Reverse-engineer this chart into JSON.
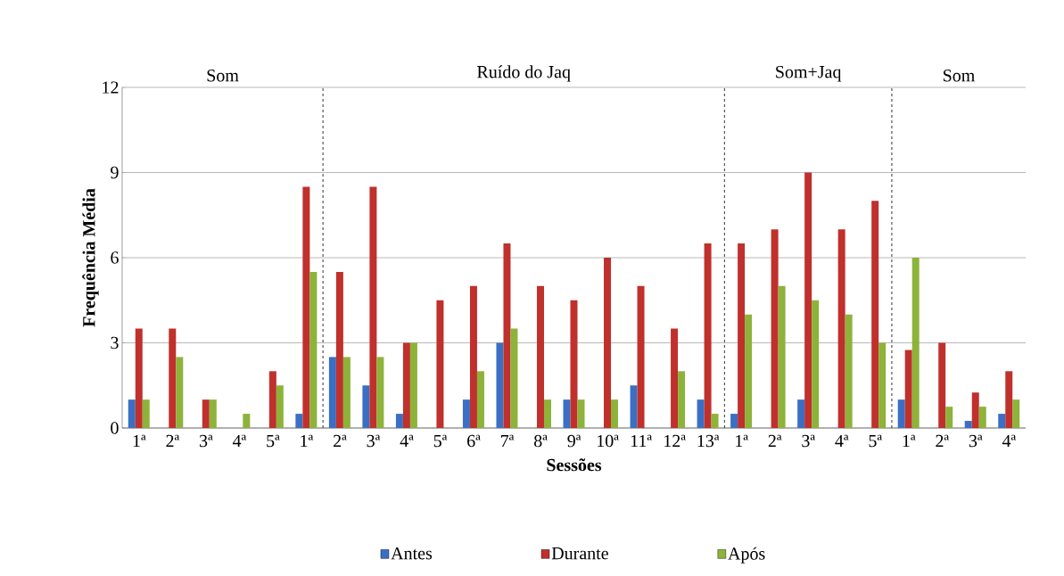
{
  "chart_data": {
    "type": "bar",
    "xlabel": "Sessões",
    "ylabel": "Frequência Média",
    "categories": [
      "1ª",
      "2ª",
      "3ª",
      "4ª",
      "5ª",
      "1ª",
      "2ª",
      "3ª",
      "4ª",
      "5ª",
      "6ª",
      "7ª",
      "8ª",
      "9ª",
      "10ª",
      "11ª",
      "12ª",
      "13ª",
      "1ª",
      "2ª",
      "3ª",
      "4ª",
      "5ª",
      "1ª",
      "2ª",
      "3ª",
      "4ª"
    ],
    "series": [
      {
        "name": "Antes",
        "color": "#3a6fc4",
        "values": [
          1,
          0,
          0,
          0,
          0,
          0.5,
          2.5,
          1.5,
          0.5,
          0,
          1,
          3,
          0,
          1,
          0,
          1.5,
          0,
          1,
          0.5,
          0,
          1,
          0,
          0,
          1,
          0,
          0.25,
          0.5
        ]
      },
      {
        "name": "Durante",
        "color": "#c0302c",
        "values": [
          3.5,
          3.5,
          1,
          0,
          2,
          8.5,
          5.5,
          8.5,
          3,
          4.5,
          5,
          6.5,
          5,
          4.5,
          6,
          5,
          3.5,
          6.5,
          6.5,
          7,
          9,
          7,
          8,
          2.75,
          3,
          1.25,
          2
        ]
      },
      {
        "name": "Após",
        "color": "#8db33a",
        "values": [
          1,
          2.5,
          1,
          0.5,
          1.5,
          5.5,
          2.5,
          2.5,
          3,
          0,
          2,
          3.5,
          1,
          1,
          1,
          0,
          2,
          0.5,
          4,
          5,
          4.5,
          4,
          3,
          6,
          0.75,
          0.75,
          1
        ]
      }
    ],
    "ylim": [
      0,
      12
    ],
    "yticks": [
      0,
      3,
      6,
      9,
      12
    ],
    "grid": "y",
    "legend": "bottom",
    "annotations": [
      "Som",
      "Ruído do Jaq",
      "Som+Jaq",
      "Som"
    ]
  }
}
